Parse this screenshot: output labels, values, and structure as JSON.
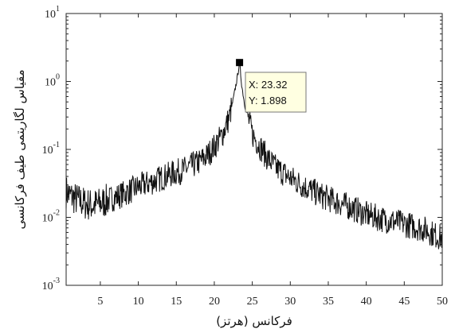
{
  "chart_data": {
    "type": "line",
    "xlabel": "فرکانس (هرتز)",
    "ylabel": "مقیاس لگاریتمی طیف فرکانسی",
    "xlim": [
      0.5,
      50
    ],
    "ylim": [
      0.001,
      10
    ],
    "yscale": "log",
    "grid": false,
    "x_ticks": [
      5,
      10,
      15,
      20,
      25,
      30,
      35,
      40,
      45,
      50
    ],
    "x_tick_labels": [
      "5",
      "10",
      "15",
      "20",
      "25",
      "30",
      "35",
      "40",
      "45",
      "50"
    ],
    "y_ticks": [
      0.001,
      0.01,
      0.1,
      1,
      10
    ],
    "y_tick_labels": [
      {
        "base": "10",
        "exp": "-3"
      },
      {
        "base": "10",
        "exp": "-2"
      },
      {
        "base": "10",
        "exp": "-1"
      },
      {
        "base": "10",
        "exp": "0"
      },
      {
        "base": "10",
        "exp": "1"
      }
    ],
    "line_color": "#111111",
    "series": [
      {
        "x": [
          0.5,
          1,
          2,
          3,
          4,
          5,
          6,
          8,
          10,
          12,
          14,
          16,
          18,
          19,
          20,
          21,
          22,
          22.5,
          23,
          23.32,
          23.6,
          24,
          24.5,
          25,
          26,
          27,
          28,
          30,
          32,
          34,
          36,
          38,
          40,
          42,
          44,
          46,
          48,
          49,
          50
        ],
        "y": [
          0.024,
          0.021,
          0.018,
          0.016,
          0.015,
          0.016,
          0.018,
          0.022,
          0.028,
          0.034,
          0.042,
          0.05,
          0.065,
          0.08,
          0.11,
          0.16,
          0.3,
          0.55,
          1.1,
          1.898,
          0.9,
          0.45,
          0.28,
          0.17,
          0.11,
          0.075,
          0.055,
          0.038,
          0.028,
          0.021,
          0.017,
          0.014,
          0.011,
          0.0095,
          0.0085,
          0.0075,
          0.0065,
          0.0055,
          0.005
        ]
      }
    ],
    "marker": {
      "x": 23.32,
      "y": 1.898,
      "color": "#000000"
    },
    "datatip": {
      "x_text": "X: 23.32",
      "y_text": "Y: 1.898",
      "bg": "#ffffe1"
    }
  }
}
